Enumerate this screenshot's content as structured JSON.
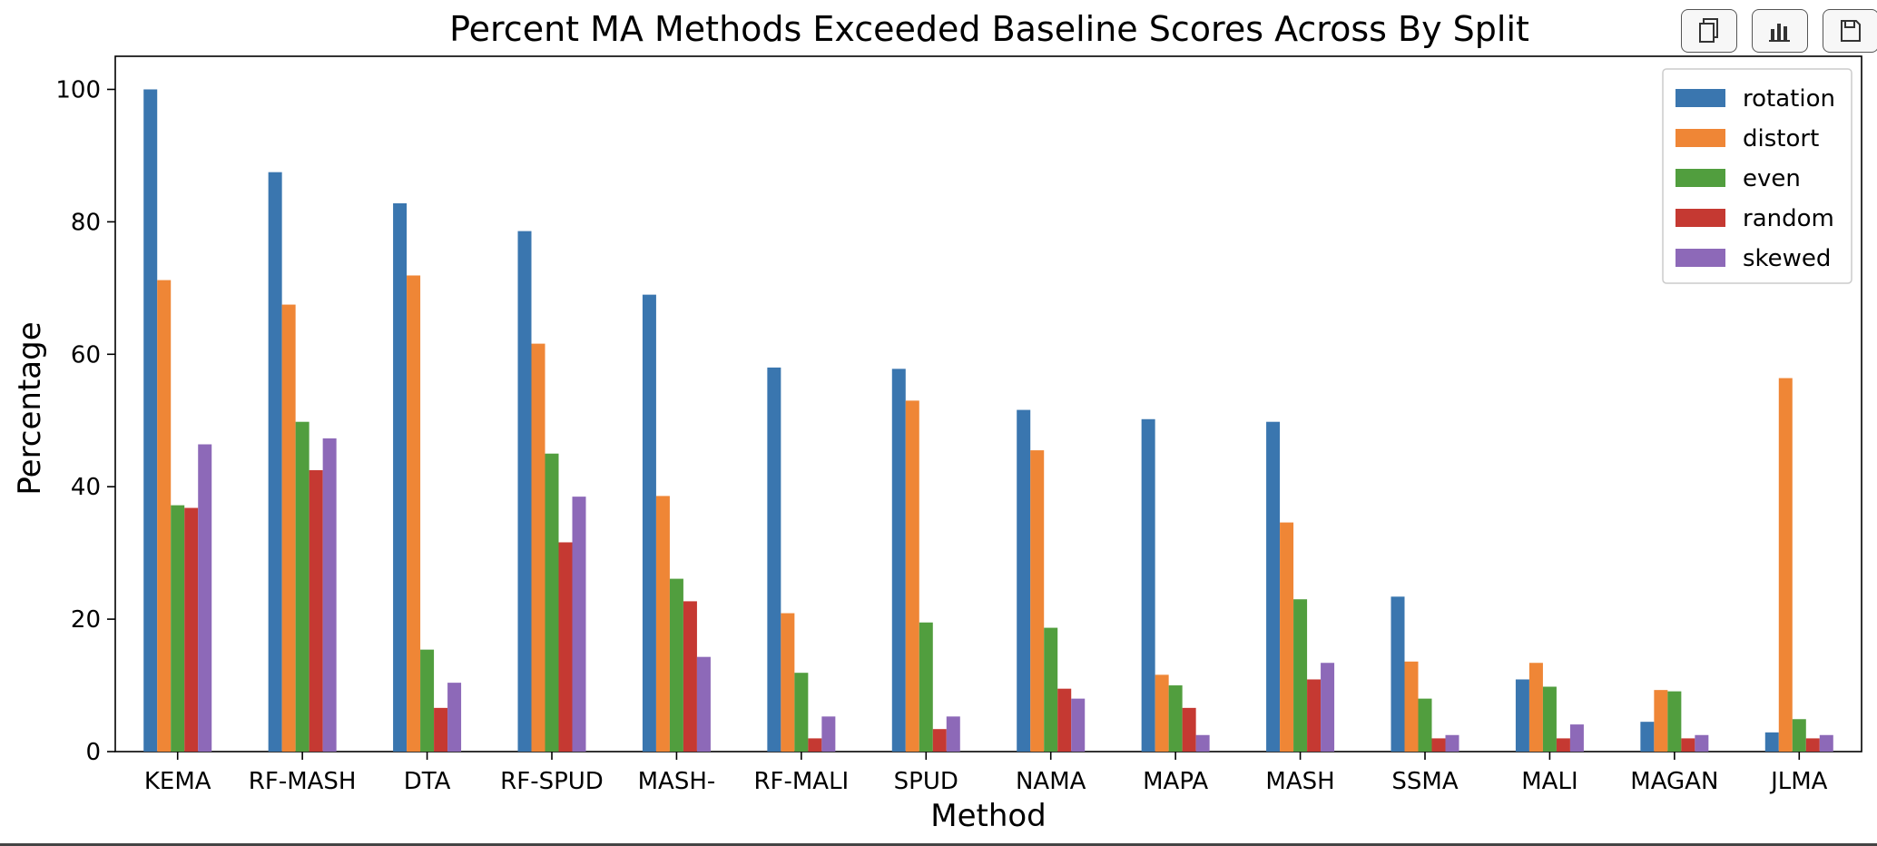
{
  "toolbar": {
    "buttons": [
      {
        "name": "copy-button",
        "icon": "copy-icon"
      },
      {
        "name": "chart-button",
        "icon": "bar-chart-icon"
      },
      {
        "name": "save-button",
        "icon": "save-icon"
      }
    ]
  },
  "chart_data": {
    "type": "bar",
    "title": "Percent MA Methods Exceeded Baseline Scores Across By Split",
    "xlabel": "Method",
    "ylabel": "Percentage",
    "ylim": [
      0,
      105
    ],
    "yticks": [
      0,
      20,
      40,
      60,
      80,
      100
    ],
    "grid": false,
    "legend_position": "top-right",
    "categories": [
      "KEMA",
      "RF-MASH",
      "DTA",
      "RF-SPUD",
      "MASH-",
      "RF-MALI",
      "SPUD",
      "NAMA",
      "MAPA",
      "MASH",
      "SSMA",
      "MALI",
      "MAGAN",
      "JLMA"
    ],
    "series": [
      {
        "name": "rotation",
        "color": "#3a76af",
        "values": [
          100.0,
          87.5,
          82.8,
          78.6,
          69.0,
          58.0,
          57.8,
          51.6,
          50.2,
          49.8,
          23.4,
          10.9,
          4.5,
          2.9
        ]
      },
      {
        "name": "distort",
        "color": "#ef8636",
        "values": [
          71.2,
          67.5,
          71.9,
          61.6,
          38.6,
          20.9,
          53.0,
          45.5,
          11.6,
          34.6,
          13.6,
          13.4,
          9.3,
          56.4
        ]
      },
      {
        "name": "even",
        "color": "#519e3e",
        "values": [
          37.2,
          49.8,
          15.4,
          45.0,
          26.1,
          11.9,
          19.5,
          18.7,
          10.0,
          23.0,
          8.0,
          9.8,
          9.1,
          4.9
        ]
      },
      {
        "name": "random",
        "color": "#c53932",
        "values": [
          36.8,
          42.5,
          6.6,
          31.6,
          22.7,
          2.0,
          3.4,
          9.5,
          6.6,
          10.9,
          2.0,
          2.0,
          2.0,
          2.0
        ]
      },
      {
        "name": "skewed",
        "color": "#8d69b8",
        "values": [
          46.4,
          47.3,
          10.4,
          38.5,
          14.3,
          5.3,
          5.3,
          8.0,
          2.5,
          13.4,
          2.5,
          4.1,
          2.5,
          2.5
        ]
      }
    ]
  }
}
